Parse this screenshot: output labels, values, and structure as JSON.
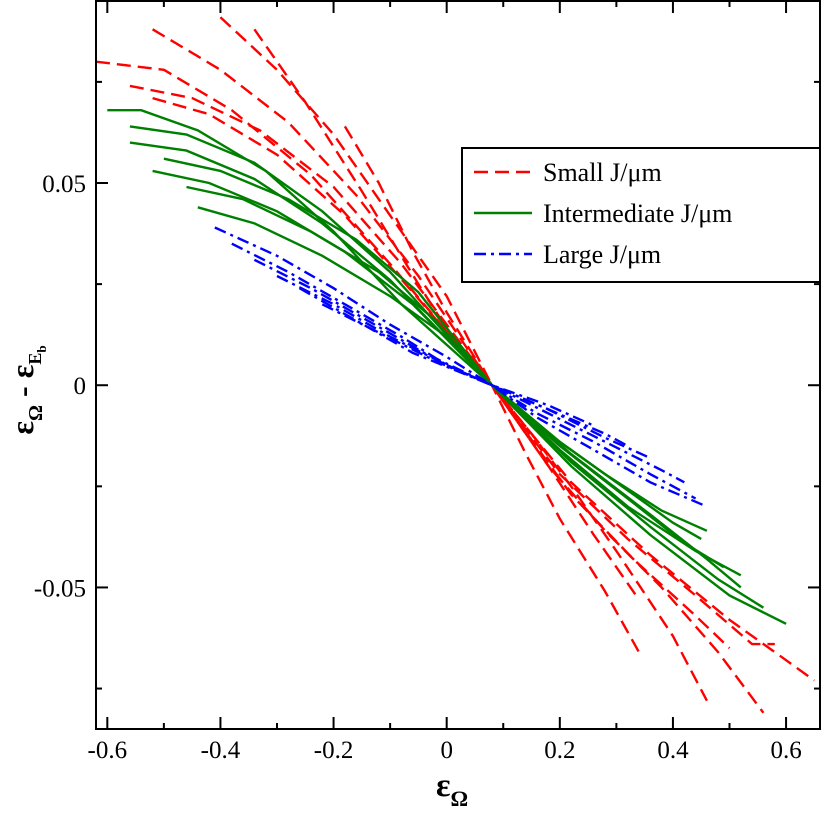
{
  "chart_data": {
    "type": "line",
    "xlabel": "εΩ",
    "ylabel": "εΩ - εEb",
    "xlim": [
      -0.62,
      0.66
    ],
    "ylim": [
      -0.085,
      0.095
    ],
    "xticks": [
      -0.6,
      -0.4,
      -0.2,
      0,
      0.2,
      0.4,
      0.6
    ],
    "xtick_labels": [
      "-0.6",
      "-0.4",
      "-0.2",
      "0",
      "0.2",
      "0.4",
      "0.6"
    ],
    "yticks": [
      -0.05,
      0,
      0.05
    ],
    "ytick_labels": [
      "-0.05",
      "0",
      "0.05"
    ],
    "grid": false,
    "legend_position": "upper-right",
    "groups": [
      {
        "name": "Small J/μm",
        "color": "#ff0000",
        "style": "dashed",
        "series": [
          {
            "x": [
              -0.34,
              -0.25,
              -0.15,
              -0.05,
              0.0,
              0.08,
              0.15,
              0.22,
              0.3,
              0.4,
              0.46
            ],
            "y": [
              0.088,
              0.07,
              0.048,
              0.025,
              0.014,
              0.0,
              -0.012,
              -0.025,
              -0.041,
              -0.062,
              -0.078
            ]
          },
          {
            "x": [
              -0.4,
              -0.3,
              -0.2,
              -0.1,
              0.0,
              0.08,
              0.18,
              0.28,
              0.38,
              0.48,
              0.56
            ],
            "y": [
              0.091,
              0.078,
              0.062,
              0.042,
              0.022,
              0.0,
              -0.02,
              -0.036,
              -0.05,
              -0.066,
              -0.081
            ]
          },
          {
            "x": [
              -0.52,
              -0.4,
              -0.28,
              -0.16,
              -0.05,
              0.08,
              0.2,
              0.32,
              0.44,
              0.54,
              0.58
            ],
            "y": [
              0.088,
              0.078,
              0.065,
              0.047,
              0.027,
              0.0,
              -0.022,
              -0.038,
              -0.052,
              -0.064,
              -0.064
            ]
          },
          {
            "x": [
              -0.62,
              -0.5,
              -0.38,
              -0.24,
              -0.1,
              0.08,
              0.22,
              0.36,
              0.5,
              0.6,
              0.65
            ],
            "y": [
              0.08,
              0.078,
              0.068,
              0.052,
              0.03,
              0.0,
              -0.024,
              -0.042,
              -0.058,
              -0.068,
              -0.073
            ]
          },
          {
            "x": [
              -0.56,
              -0.45,
              -0.33,
              -0.2,
              -0.08,
              0.08,
              0.22,
              0.33,
              0.44,
              0.5
            ],
            "y": [
              0.074,
              0.071,
              0.063,
              0.049,
              0.03,
              0.0,
              -0.027,
              -0.043,
              -0.057,
              -0.065
            ]
          },
          {
            "x": [
              -0.52,
              -0.42,
              -0.3,
              -0.18,
              -0.06,
              0.08,
              0.18,
              0.26,
              0.34
            ],
            "y": [
              0.071,
              0.067,
              0.057,
              0.042,
              0.023,
              0.0,
              -0.02,
              -0.037,
              -0.053
            ]
          },
          {
            "x": [
              -0.18,
              -0.12,
              -0.06,
              0.0,
              0.08,
              0.14,
              0.2,
              0.28,
              0.34
            ],
            "y": [
              0.064,
              0.05,
              0.033,
              0.018,
              0.0,
              -0.017,
              -0.033,
              -0.051,
              -0.066
            ]
          }
        ]
      },
      {
        "name": "Intermediate J/μm",
        "color": "#008000",
        "style": "solid",
        "series": [
          {
            "x": [
              -0.6,
              -0.54,
              -0.44,
              -0.32,
              -0.2,
              -0.08,
              0.08,
              0.22,
              0.36,
              0.5,
              0.6
            ],
            "y": [
              0.068,
              0.068,
              0.063,
              0.053,
              0.038,
              0.02,
              0.0,
              -0.02,
              -0.037,
              -0.052,
              -0.059
            ]
          },
          {
            "x": [
              -0.56,
              -0.46,
              -0.34,
              -0.22,
              -0.1,
              0.08,
              0.22,
              0.36,
              0.48,
              0.56
            ],
            "y": [
              0.064,
              0.062,
              0.055,
              0.043,
              0.028,
              0.0,
              -0.019,
              -0.035,
              -0.048,
              -0.055
            ]
          },
          {
            "x": [
              -0.56,
              -0.46,
              -0.34,
              -0.22,
              -0.1,
              0.08,
              0.22,
              0.36,
              0.46,
              0.52
            ],
            "y": [
              0.06,
              0.058,
              0.051,
              0.04,
              0.026,
              0.0,
              -0.017,
              -0.032,
              -0.043,
              -0.05
            ]
          },
          {
            "x": [
              -0.5,
              -0.4,
              -0.28,
              -0.16,
              -0.05,
              0.08,
              0.2,
              0.32,
              0.44,
              0.52
            ],
            "y": [
              0.056,
              0.053,
              0.046,
              0.036,
              0.023,
              0.0,
              -0.016,
              -0.03,
              -0.041,
              -0.047
            ]
          },
          {
            "x": [
              -0.52,
              -0.42,
              -0.3,
              -0.18,
              -0.06,
              0.08,
              0.2,
              0.32,
              0.42,
              0.49
            ],
            "y": [
              0.053,
              0.05,
              0.043,
              0.033,
              0.02,
              0.0,
              -0.015,
              -0.028,
              -0.039,
              -0.045
            ]
          },
          {
            "x": [
              -0.46,
              -0.36,
              -0.24,
              -0.12,
              -0.02,
              0.08,
              0.2,
              0.32,
              0.4,
              0.45
            ],
            "y": [
              0.049,
              0.046,
              0.038,
              0.028,
              0.016,
              0.0,
              -0.014,
              -0.026,
              -0.034,
              -0.038
            ]
          },
          {
            "x": [
              -0.44,
              -0.34,
              -0.22,
              -0.1,
              0.0,
              0.08,
              0.18,
              0.28,
              0.38,
              0.46
            ],
            "y": [
              0.044,
              0.04,
              0.032,
              0.022,
              0.012,
              0.0,
              -0.012,
              -0.022,
              -0.031,
              -0.036
            ]
          }
        ]
      },
      {
        "name": "Large J/μm",
        "color": "#0000ff",
        "style": "dashdot",
        "series": [
          {
            "x": [
              -0.41,
              -0.3,
              -0.2,
              -0.1,
              0.0,
              0.08,
              0.16,
              0.26,
              0.36,
              0.46
            ],
            "y": [
              0.039,
              0.032,
              0.024,
              0.015,
              0.007,
              0.0,
              -0.008,
              -0.016,
              -0.024,
              -0.03
            ]
          },
          {
            "x": [
              -0.38,
              -0.28,
              -0.18,
              -0.08,
              0.0,
              0.08,
              0.16,
              0.26,
              0.36,
              0.44
            ],
            "y": [
              0.035,
              0.028,
              0.02,
              0.012,
              0.005,
              0.0,
              -0.007,
              -0.014,
              -0.022,
              -0.028
            ]
          },
          {
            "x": [
              -0.34,
              -0.24,
              -0.14,
              -0.04,
              0.08,
              0.18,
              0.28,
              0.38,
              0.42
            ],
            "y": [
              0.031,
              0.024,
              0.016,
              0.008,
              0.0,
              -0.007,
              -0.014,
              -0.021,
              -0.024
            ]
          },
          {
            "x": [
              -0.3,
              -0.2,
              -0.1,
              0.0,
              0.08,
              0.18,
              0.28,
              0.36
            ],
            "y": [
              0.027,
              0.02,
              0.012,
              0.005,
              0.0,
              -0.006,
              -0.013,
              -0.018
            ]
          },
          {
            "x": [
              -0.26,
              -0.16,
              -0.06,
              0.08,
              0.18,
              0.28,
              0.32
            ],
            "y": [
              0.024,
              0.016,
              0.008,
              0.0,
              -0.006,
              -0.012,
              -0.015
            ]
          },
          {
            "x": [
              -0.22,
              -0.12,
              -0.02,
              0.08,
              0.18,
              0.26
            ],
            "y": [
              0.02,
              0.013,
              0.006,
              0.0,
              -0.005,
              -0.01
            ]
          }
        ]
      }
    ]
  }
}
